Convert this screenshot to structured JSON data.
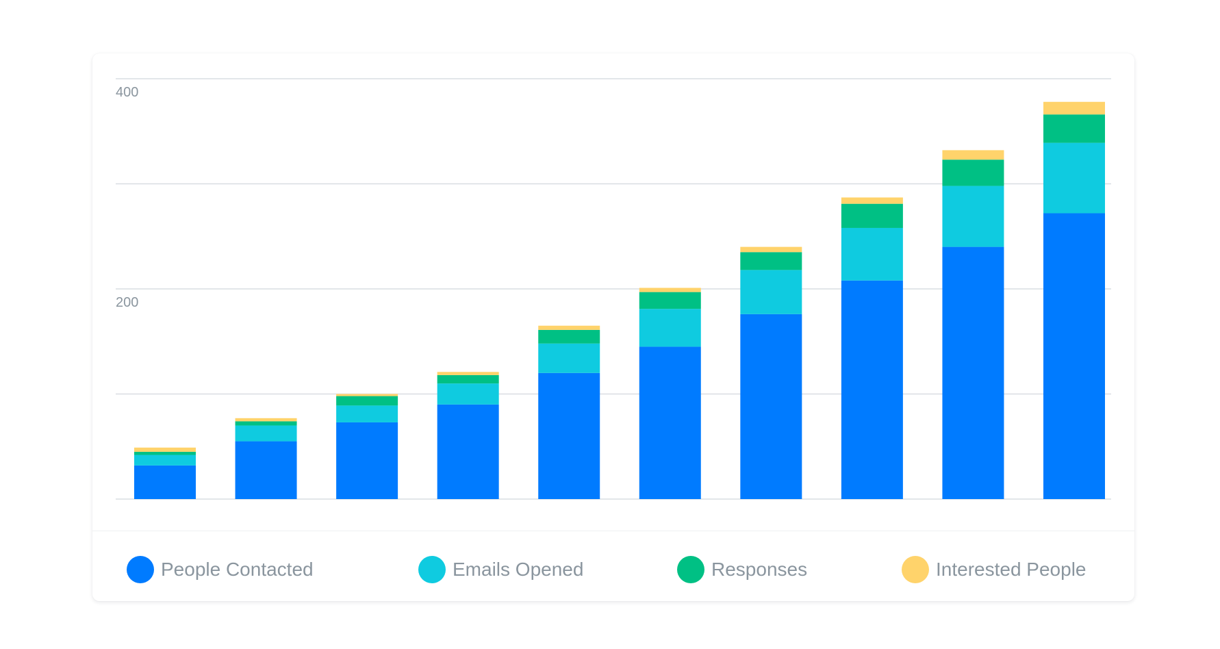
{
  "chart_data": {
    "type": "bar",
    "stacked": true,
    "categories": [
      "",
      "",
      "",
      "",
      "",
      "",
      "",
      "",
      "",
      ""
    ],
    "series": [
      {
        "name": "People Contacted",
        "color": "#007bff",
        "values": [
          32,
          55,
          73,
          90,
          120,
          145,
          176,
          208,
          240,
          272
        ]
      },
      {
        "name": "Emails Opened",
        "color": "#0fcbe0",
        "values": [
          10,
          15,
          16,
          20,
          28,
          36,
          42,
          50,
          58,
          67
        ]
      },
      {
        "name": "Responses",
        "color": "#00c084",
        "values": [
          3,
          4,
          9,
          8,
          13,
          16,
          17,
          23,
          25,
          27
        ]
      },
      {
        "name": "Interested People",
        "color": "#ffd36b",
        "values": [
          4,
          3,
          2,
          3,
          4,
          4,
          5,
          6,
          9,
          12
        ]
      }
    ],
    "y_ticks": [
      {
        "value": 0,
        "label": ""
      },
      {
        "value": 100,
        "label": ""
      },
      {
        "value": 200,
        "label": "200"
      },
      {
        "value": 300,
        "label": ""
      },
      {
        "value": 400,
        "label": "400"
      }
    ],
    "ylim": [
      0,
      400
    ],
    "grid": true,
    "legend_position": "bottom",
    "title": "",
    "xlabel": "",
    "ylabel": ""
  }
}
